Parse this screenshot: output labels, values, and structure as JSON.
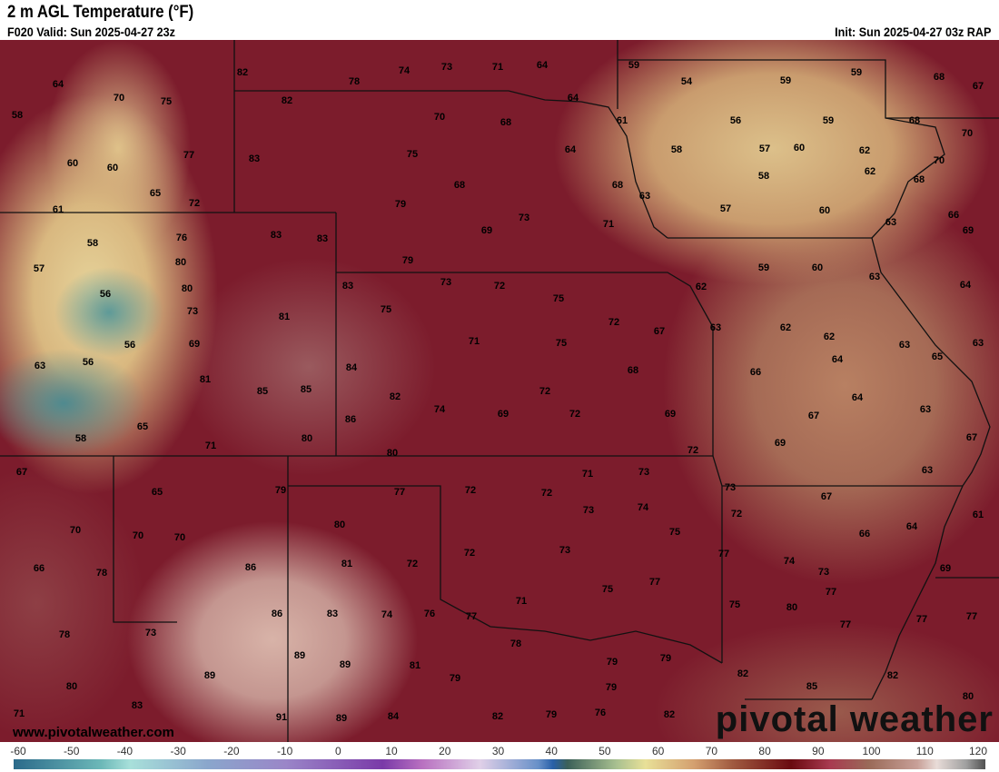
{
  "header": {
    "title": "2 m AGL Temperature (°F)",
    "valid": "F020 Valid: Sun 2025-04-27 23z",
    "init": "Init: Sun 2025-04-27 03z RAP"
  },
  "map": {
    "labels": [
      "64",
      "70",
      "75",
      "58",
      "82",
      "78",
      "74",
      "73",
      "71",
      "64",
      "59",
      "54",
      "59",
      "59",
      "68",
      "67",
      "82",
      "70",
      "68",
      "64",
      "61",
      "56",
      "59",
      "68",
      "70",
      "60",
      "60",
      "77",
      "83",
      "75",
      "64",
      "58",
      "57",
      "60",
      "62",
      "70",
      "65",
      "72",
      "68",
      "68",
      "58",
      "62",
      "68",
      "61",
      "79",
      "73",
      "63",
      "57",
      "60",
      "63",
      "66",
      "69",
      "58",
      "76",
      "83",
      "83",
      "69",
      "71",
      "57",
      "80",
      "79",
      "59",
      "60",
      "63",
      "56",
      "80",
      "83",
      "73",
      "72",
      "75",
      "62",
      "64",
      "73",
      "81",
      "75",
      "72",
      "67",
      "63",
      "62",
      "62",
      "56",
      "69",
      "71",
      "75",
      "63",
      "63",
      "63",
      "56",
      "64",
      "65",
      "68",
      "66",
      "81",
      "84",
      "85",
      "85",
      "82",
      "72",
      "64",
      "65",
      "86",
      "74",
      "69",
      "72",
      "69",
      "67",
      "63",
      "58",
      "71",
      "80",
      "80",
      "72",
      "69",
      "67",
      "67",
      "71",
      "73",
      "63",
      "65",
      "79",
      "77",
      "72",
      "72",
      "73",
      "67",
      "73",
      "74",
      "72",
      "61",
      "70",
      "70",
      "70",
      "80",
      "75",
      "64",
      "66",
      "72",
      "73",
      "77",
      "66",
      "78",
      "86",
      "81",
      "72",
      "74",
      "73",
      "69",
      "77",
      "75",
      "77",
      "71",
      "75",
      "80",
      "78",
      "73",
      "86",
      "83",
      "74",
      "76",
      "77",
      "77",
      "77",
      "77",
      "78",
      "89",
      "89",
      "81",
      "79",
      "79",
      "79",
      "82",
      "82",
      "89",
      "80",
      "79",
      "85",
      "80",
      "83",
      "71",
      "91",
      "89",
      "84",
      "82",
      "79",
      "76",
      "82"
    ],
    "watermark_url": "www.pivotalweather.com",
    "logo": "pivotal weather"
  },
  "colorbar": {
    "ticks": [
      "-60",
      "-50",
      "-40",
      "-30",
      "-20",
      "-10",
      "0",
      "10",
      "20",
      "30",
      "40",
      "50",
      "60",
      "70",
      "80",
      "90",
      "100",
      "110",
      "120"
    ],
    "min": -60,
    "max": 120,
    "unit": "°F"
  }
}
